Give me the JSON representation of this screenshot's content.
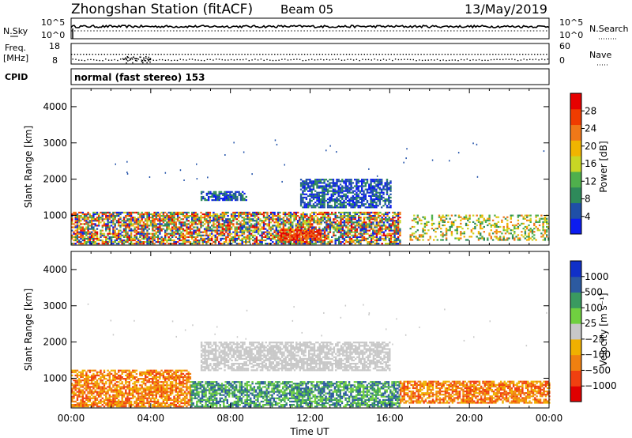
{
  "header": {
    "station": "Zhongshan Station (fitACF)",
    "beam": "Beam 05",
    "date": "13/May/2019"
  },
  "panels": {
    "nsky": {
      "label": "N.Sky",
      "tick_hi": "10^5",
      "tick_lo": "10^0",
      "right_label": "N.Search",
      "right_hi": "10^5",
      "right_lo": "10^0"
    },
    "freq": {
      "label_top": "Freq.",
      "label_unit": "[MHz]",
      "tick_hi": "18",
      "tick_lo": "8",
      "right_label": "Nave",
      "right_hi": "60",
      "right_lo": "0"
    },
    "cpid": {
      "label": "CPID",
      "text": "normal (fast stereo) 153"
    }
  },
  "colors": {
    "power": [
      "#0c1cf0",
      "#1f4fa8",
      "#2e8a5a",
      "#4fb04c",
      "#c8d624",
      "#f0b400",
      "#f07818",
      "#f03c00",
      "#e60000"
    ],
    "velocity": [
      "#e00000",
      "#f04010",
      "#f08010",
      "#f0b000",
      "#c8c8c8",
      "#70d040",
      "#3a9a60",
      "#2c5aa0",
      "#1030c8"
    ]
  },
  "chart_data": [
    {
      "type": "heatmap",
      "title": "Power",
      "ylabel": "Slant Range [km]",
      "ylim": [
        180,
        4500
      ],
      "yticks": [
        "1000",
        "2000",
        "3000",
        "4000"
      ],
      "xlim": [
        "00:00",
        "24:00"
      ],
      "colorbar": {
        "label": "Power [dB]",
        "ticks": [
          "4",
          "8",
          "12",
          "16",
          "20",
          "24",
          "28"
        ]
      },
      "echo_regions": [
        {
          "t_start": "00:00",
          "t_end": "16:30",
          "range_km": [
            200,
            1100
          ],
          "level": "mixed"
        },
        {
          "t_start": "06:30",
          "t_end": "08:45",
          "range_km": [
            1400,
            1650
          ],
          "level": "low"
        },
        {
          "t_start": "11:30",
          "t_end": "16:00",
          "range_km": [
            1200,
            2000
          ],
          "level": "low"
        },
        {
          "t_start": "10:30",
          "t_end": "12:30",
          "range_km": [
            300,
            600
          ],
          "level": "high"
        },
        {
          "t_start": "17:00",
          "t_end": "24:00",
          "range_km": [
            300,
            1000
          ],
          "level": "sparse"
        }
      ]
    },
    {
      "type": "heatmap",
      "title": "Velocity",
      "ylabel": "Slant Range [km]",
      "xlabel": "Time UT",
      "ylim": [
        180,
        4500
      ],
      "yticks": [
        "1000",
        "2000",
        "3000",
        "4000"
      ],
      "xticks": [
        "00:00",
        "04:00",
        "08:00",
        "12:00",
        "16:00",
        "20:00",
        "00:00"
      ],
      "colorbar": {
        "label": "Velocity [m s⁻¹]",
        "ticks": [
          "1000",
          "500",
          "100",
          "25",
          "−25",
          "−100",
          "−500",
          "−1000"
        ]
      },
      "echo_regions": [
        {
          "t_start": "00:00",
          "t_end": "06:00",
          "range_km": [
            200,
            1200
          ],
          "level": "negative"
        },
        {
          "t_start": "06:00",
          "t_end": "16:30",
          "range_km": [
            200,
            900
          ],
          "level": "positive"
        },
        {
          "t_start": "06:30",
          "t_end": "16:00",
          "range_km": [
            1200,
            2000
          ],
          "level": "near-zero"
        },
        {
          "t_start": "16:30",
          "t_end": "24:00",
          "range_km": [
            300,
            900
          ],
          "level": "negative"
        }
      ]
    }
  ]
}
